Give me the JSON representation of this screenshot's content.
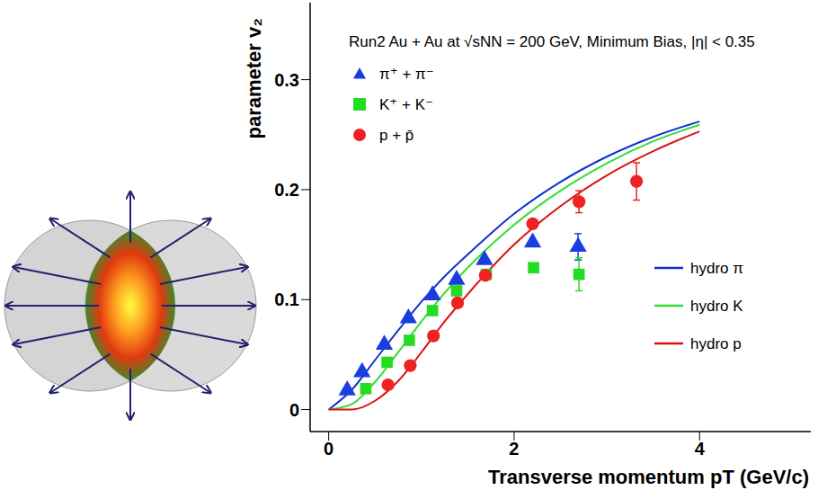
{
  "chart_data": {
    "type": "scatter",
    "title": "Run2 Au + Au at √sNN = 200 GeV, Minimum Bias, |η| < 0.35",
    "x_label": "Transverse momentum pT (GeV/c)",
    "y_label": "parameter v₂",
    "xlim": [
      -0.2,
      5.2
    ],
    "xticks": [
      0,
      2,
      4
    ],
    "ylim": [
      -0.02,
      0.37
    ],
    "yticks": [
      0,
      0.1,
      0.2,
      0.3
    ],
    "series": [
      {
        "name": "π⁺ + π⁻",
        "type": "scatter",
        "marker": "triangle",
        "color": "#1a3de0",
        "x": [
          0.2,
          0.36,
          0.6,
          0.86,
          1.12,
          1.38,
          1.68,
          2.2,
          2.69
        ],
        "values": [
          0.0175,
          0.034,
          0.059,
          0.083,
          0.104,
          0.118,
          0.136,
          0.152,
          0.148
        ],
        "errors": [
          null,
          null,
          null,
          null,
          null,
          null,
          null,
          null,
          0.012
        ]
      },
      {
        "name": "K⁺ + K⁻",
        "type": "scatter",
        "marker": "square",
        "color": "#22dd22",
        "x": [
          0.4,
          0.63,
          0.87,
          1.12,
          1.38,
          1.7,
          2.21,
          2.7
        ],
        "values": [
          0.019,
          0.043,
          0.063,
          0.09,
          0.108,
          0.123,
          0.129,
          0.123
        ],
        "errors": [
          null,
          null,
          null,
          null,
          null,
          null,
          null,
          0.015
        ]
      },
      {
        "name": "p + p̄",
        "type": "scatter",
        "marker": "circle",
        "color": "#ee2222",
        "x": [
          0.64,
          0.88,
          1.13,
          1.39,
          1.69,
          2.2,
          2.7,
          3.32
        ],
        "values": [
          0.0225,
          0.04,
          0.067,
          0.097,
          0.122,
          0.169,
          0.189,
          0.2075
        ],
        "errors": [
          null,
          null,
          null,
          null,
          null,
          null,
          0.01,
          0.017
        ]
      },
      {
        "name": "hydro π",
        "type": "line",
        "color": "#1030d0",
        "x": [
          0,
          0.25,
          0.5,
          0.75,
          1,
          1.25,
          1.5,
          2,
          2.5,
          3,
          3.5,
          4
        ],
        "values": [
          0,
          0.018,
          0.045,
          0.072,
          0.098,
          0.121,
          0.141,
          0.178,
          0.207,
          0.23,
          0.248,
          0.262
        ]
      },
      {
        "name": "hydro K",
        "type": "line",
        "color": "#33dd33",
        "x": [
          0,
          0.25,
          0.5,
          0.75,
          1,
          1.25,
          1.5,
          2,
          2.5,
          3,
          3.5,
          4
        ],
        "values": [
          0,
          0.005,
          0.025,
          0.052,
          0.08,
          0.106,
          0.129,
          0.168,
          0.199,
          0.224,
          0.244,
          0.259
        ]
      },
      {
        "name": "hydro p",
        "type": "line",
        "color": "#dd1111",
        "x": [
          0,
          0.25,
          0.5,
          0.75,
          1,
          1.25,
          1.5,
          2,
          2.5,
          3,
          3.5,
          4
        ],
        "values": [
          0,
          0,
          0.008,
          0.026,
          0.052,
          0.08,
          0.105,
          0.15,
          0.185,
          0.213,
          0.235,
          0.253
        ]
      }
    ]
  }
}
